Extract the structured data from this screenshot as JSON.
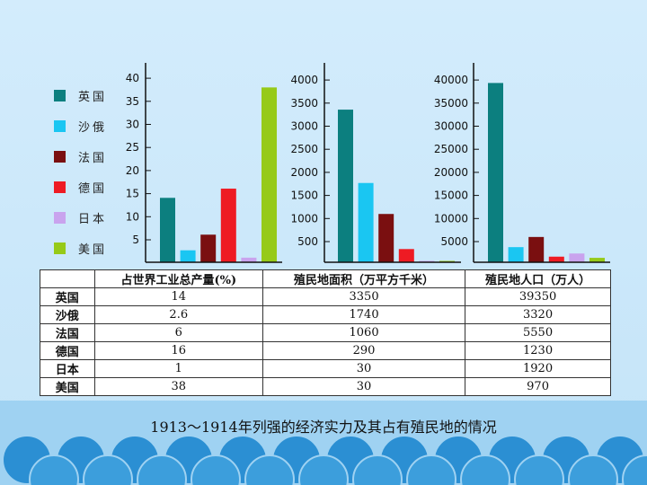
{
  "legend": [
    {
      "label": "英国",
      "color": "#0c7f7f"
    },
    {
      "label": "沙俄",
      "color": "#1ac6f2"
    },
    {
      "label": "法国",
      "color": "#7a0f10"
    },
    {
      "label": "德国",
      "color": "#ee1b23"
    },
    {
      "label": "日本",
      "color": "#c9a3ee"
    },
    {
      "label": "美国",
      "color": "#96ca18"
    }
  ],
  "chart_data": [
    {
      "type": "bar",
      "title": "",
      "categories": [
        "英国",
        "沙俄",
        "法国",
        "德国",
        "日本",
        "美国"
      ],
      "values": [
        14,
        2.6,
        6,
        16,
        1,
        38
      ],
      "ylim": [
        0,
        40
      ],
      "yticks": [
        "5",
        "10",
        "15",
        "20",
        "25",
        "30",
        "35",
        "40"
      ],
      "grid": false
    },
    {
      "type": "bar",
      "title": "",
      "categories": [
        "英国",
        "沙俄",
        "法国",
        "德国",
        "日本",
        "美国"
      ],
      "values": [
        3350,
        1740,
        1060,
        290,
        30,
        30
      ],
      "ylim": [
        0,
        4000
      ],
      "yticks": [
        "500",
        "1000",
        "1500",
        "2000",
        "2500",
        "3000",
        "3500",
        "4000"
      ],
      "grid": false
    },
    {
      "type": "bar",
      "title": "",
      "categories": [
        "英国",
        "沙俄",
        "法国",
        "德国",
        "日本",
        "美国"
      ],
      "values": [
        39350,
        3320,
        5550,
        1230,
        1920,
        970
      ],
      "ylim": [
        0,
        40000
      ],
      "yticks": [
        "5000",
        "10000",
        "15000",
        "20000",
        "25000",
        "30000",
        "35000",
        "40000"
      ],
      "grid": false
    }
  ],
  "table": {
    "headers": [
      "",
      "占世界工业总产量(%)",
      "殖民地面积（万平方千米）",
      "殖民地人口（万人）"
    ],
    "rows": [
      [
        "英国",
        "14",
        "3350",
        "39350"
      ],
      [
        "沙俄",
        "2.6",
        "1740",
        "3320"
      ],
      [
        "法国",
        "6",
        "1060",
        "5550"
      ],
      [
        "德国",
        "16",
        "290",
        "1230"
      ],
      [
        "日本",
        "1",
        "30",
        "1920"
      ],
      [
        "美国",
        "38",
        "30",
        "970"
      ]
    ]
  },
  "caption": "1913～1914年列强的经济实力及其占有殖民地的情况"
}
